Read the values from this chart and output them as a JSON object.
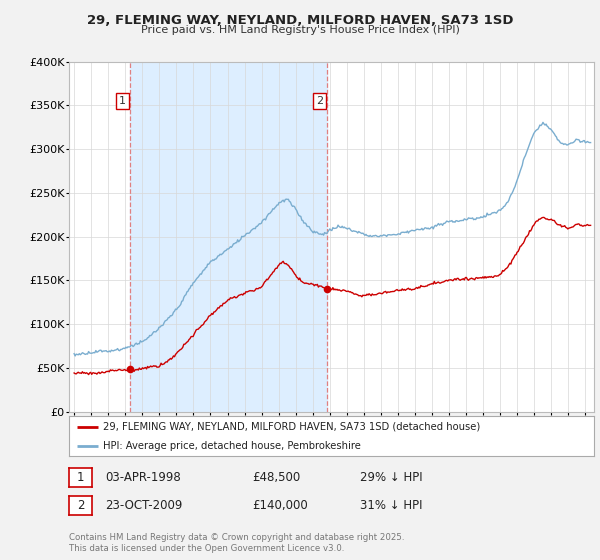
{
  "title": "29, FLEMING WAY, NEYLAND, MILFORD HAVEN, SA73 1SD",
  "subtitle": "Price paid vs. HM Land Registry's House Price Index (HPI)",
  "legend_label_red": "29, FLEMING WAY, NEYLAND, MILFORD HAVEN, SA73 1SD (detached house)",
  "legend_label_blue": "HPI: Average price, detached house, Pembrokeshire",
  "transaction_1_date": "03-APR-1998",
  "transaction_1_price": "£48,500",
  "transaction_1_hpi": "29% ↓ HPI",
  "transaction_2_date": "23-OCT-2009",
  "transaction_2_price": "£140,000",
  "transaction_2_hpi": "31% ↓ HPI",
  "footer": "Contains HM Land Registry data © Crown copyright and database right 2025.\nThis data is licensed under the Open Government Licence v3.0.",
  "bg_color": "#f2f2f2",
  "plot_bg_color": "#ffffff",
  "red_color": "#cc0000",
  "blue_color": "#7aadcf",
  "shade_color": "#ddeeff",
  "dashed_color": "#e08080",
  "ylim": [
    0,
    400000
  ],
  "yticks": [
    0,
    50000,
    100000,
    150000,
    200000,
    250000,
    300000,
    350000,
    400000
  ],
  "ytick_labels": [
    "£0",
    "£50K",
    "£100K",
    "£150K",
    "£200K",
    "£250K",
    "£300K",
    "£350K",
    "£400K"
  ],
  "xlim_start": 1994.7,
  "xlim_end": 2025.5
}
